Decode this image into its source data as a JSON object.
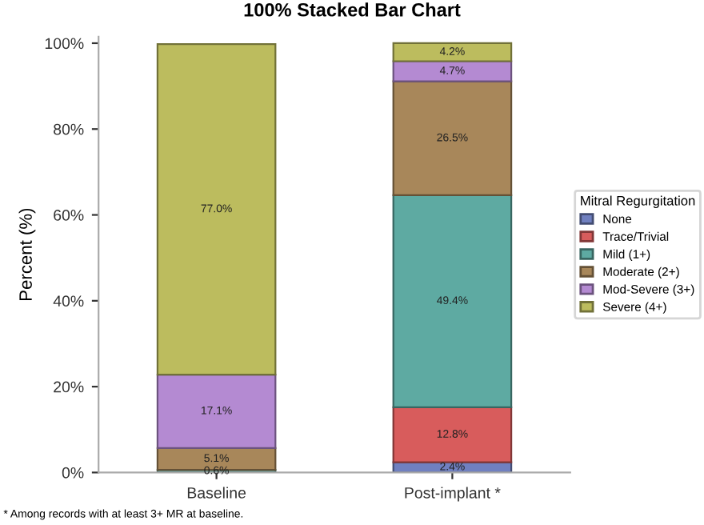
{
  "chart_data": {
    "type": "bar",
    "stacked": true,
    "title": "100% Stacked Bar Chart",
    "ylabel": "Percent (%)",
    "legend_title": "Mitral Regurgitation",
    "legend": "right",
    "categories": [
      "Baseline",
      "Post-implant *"
    ],
    "series": [
      {
        "name": "None",
        "color": "#7080c0",
        "values": [
          0,
          2.4
        ],
        "value_labels": [
          null,
          "2.4%"
        ]
      },
      {
        "name": "Trace/Trivial",
        "color": "#d85c5c",
        "values": [
          null,
          12.8
        ],
        "value_labels": [
          null,
          "12.8%"
        ]
      },
      {
        "name": "Mild (1+)",
        "color": "#5eaaa2",
        "values": [
          0.6,
          49.4
        ],
        "value_labels": [
          "0.6%",
          "49.4%"
        ]
      },
      {
        "name": "Moderate (2+)",
        "color": "#a8875a",
        "values": [
          5.1,
          26.5
        ],
        "value_labels": [
          "5.1%",
          "26.5%"
        ]
      },
      {
        "name": "Mod-Severe (3+)",
        "color": "#b48ad2",
        "values": [
          17.1,
          4.7
        ],
        "value_labels": [
          "17.1%",
          "4.7%"
        ]
      },
      {
        "name": "Severe (4+)",
        "color": "#bcbc5e",
        "values": [
          77.0,
          4.2
        ],
        "value_labels": [
          "77.0%",
          "4.2%"
        ]
      }
    ],
    "ylim": [
      0,
      101.5
    ],
    "yticks": [
      {
        "value": 0,
        "label": "0%"
      },
      {
        "value": 20,
        "label": "20%"
      },
      {
        "value": 40,
        "label": "40%"
      },
      {
        "value": 60,
        "label": "60%"
      },
      {
        "value": 80,
        "label": "80%"
      },
      {
        "value": 100,
        "label": "100%"
      }
    ],
    "grid": false,
    "annotations": [
      "* Among records with at least 3+ MR at baseline."
    ]
  }
}
